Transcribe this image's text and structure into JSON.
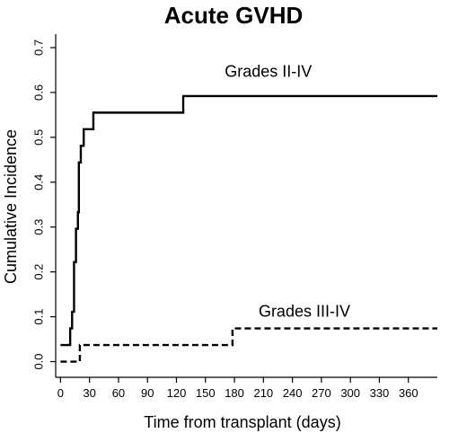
{
  "chart_data": {
    "type": "line",
    "title": "Acute GVHD",
    "xlabel": "Time from transplant (days)",
    "ylabel": "Cumulative Incidence",
    "xlim": [
      -5,
      390
    ],
    "ylim": [
      -0.035,
      0.73
    ],
    "x_ticks": [
      0,
      30,
      60,
      90,
      120,
      150,
      180,
      210,
      240,
      270,
      300,
      330,
      360
    ],
    "x_tick_labels": [
      "0",
      "30",
      "60",
      "90",
      "120",
      "150",
      "180",
      "210",
      "240",
      "270",
      "300",
      "330",
      "360"
    ],
    "y_ticks": [
      0.0,
      0.1,
      0.2,
      0.3,
      0.4,
      0.5,
      0.6,
      0.7
    ],
    "y_tick_labels": [
      "0.0",
      "0.1",
      "0.2",
      "0.3",
      "0.4",
      "0.5",
      "0.6",
      "0.7"
    ],
    "grid": false,
    "series": [
      {
        "name": "Grades II-IV",
        "style": "solid",
        "color": "#000000",
        "x": [
          0,
          8,
          10,
          12,
          14,
          16,
          18,
          19,
          21,
          24,
          30,
          34,
          127,
          390
        ],
        "y": [
          0.037,
          0.037,
          0.074,
          0.111,
          0.222,
          0.296,
          0.333,
          0.444,
          0.481,
          0.518,
          0.518,
          0.555,
          0.592,
          0.592
        ]
      },
      {
        "name": "Grades III-IV",
        "style": "dashed",
        "color": "#000000",
        "x": [
          0,
          18,
          20,
          178,
          390
        ],
        "y": [
          0.0,
          0.0,
          0.037,
          0.074,
          0.074
        ]
      }
    ],
    "annotations": [
      {
        "text": "Grades II-IV",
        "x": 170,
        "y": 0.635
      },
      {
        "text": "Grades III-IV",
        "x": 205,
        "y": 0.1
      }
    ]
  }
}
